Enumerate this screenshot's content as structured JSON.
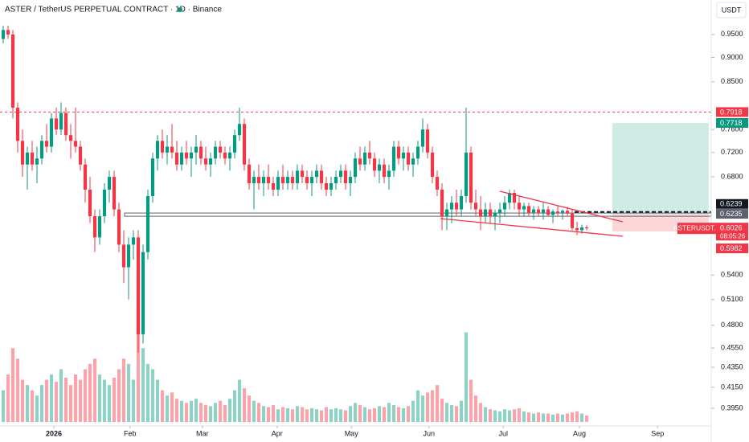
{
  "chart_data": {
    "type": "candlestick",
    "title": "ASTER / TetherUS PERPETUAL CONTRACT · 1D · Binance",
    "currency": "USDT",
    "log_scale": true,
    "grid": false,
    "up_color": "#089981",
    "down_color": "#f23645",
    "ylim": [
      0.379,
      1.03
    ],
    "yticks": [
      {
        "value": 0.95,
        "label": "0.9500"
      },
      {
        "value": 0.9,
        "label": "0.9000"
      },
      {
        "value": 0.85,
        "label": "0.8500"
      },
      {
        "value": 0.76,
        "label": "0.7600"
      },
      {
        "value": 0.72,
        "label": "0.7200"
      },
      {
        "value": 0.68,
        "label": "0.6800"
      },
      {
        "value": 0.54,
        "label": "0.5400"
      },
      {
        "value": 0.51,
        "label": "0.5100"
      },
      {
        "value": 0.48,
        "label": "0.4800"
      },
      {
        "value": 0.455,
        "label": "0.4550"
      },
      {
        "value": 0.435,
        "label": "0.4350"
      },
      {
        "value": 0.415,
        "label": "0.4150"
      },
      {
        "value": 0.395,
        "label": "0.3950"
      }
    ],
    "xlim": [
      -0.667,
      146.83
    ],
    "xticks": [
      {
        "value": 10.5,
        "label": "2026"
      },
      {
        "value": 26.3,
        "label": "Feb"
      },
      {
        "value": 41.3,
        "label": "Mar"
      },
      {
        "value": 56.8,
        "label": "Apr"
      },
      {
        "value": 72.2,
        "label": "May"
      },
      {
        "value": 88.3,
        "label": "Jun"
      },
      {
        "value": 103.7,
        "label": "Jul"
      },
      {
        "value": 119.5,
        "label": "Aug"
      },
      {
        "value": 135.7,
        "label": "Sep"
      }
    ],
    "levels": [
      {
        "value": 0.7918,
        "color": "#f23645"
      },
      {
        "value": 0.7718,
        "color": "#089981"
      },
      {
        "value": 0.6239,
        "color": "#131722"
      },
      {
        "value": 0.6235,
        "color": "#5d606b"
      },
      {
        "value": 0.5982,
        "color": "#f23645"
      }
    ],
    "symbol": "ASTERUSDT.P",
    "last_price": 0.6026,
    "countdown": "08:05:26",
    "candles": [
      [
        0.94,
        0.97,
        0.93,
        0.96
      ],
      [
        0.96,
        0.97,
        0.94,
        0.95
      ],
      [
        0.95,
        0.96,
        0.78,
        0.8
      ],
      [
        0.8,
        0.81,
        0.72,
        0.74
      ],
      [
        0.74,
        0.76,
        0.68,
        0.7
      ],
      [
        0.7,
        0.73,
        0.66,
        0.72
      ],
      [
        0.72,
        0.74,
        0.69,
        0.7
      ],
      [
        0.7,
        0.73,
        0.67,
        0.71
      ],
      [
        0.71,
        0.75,
        0.7,
        0.74
      ],
      [
        0.74,
        0.77,
        0.72,
        0.73
      ],
      [
        0.73,
        0.79,
        0.72,
        0.78
      ],
      [
        0.78,
        0.8,
        0.75,
        0.76
      ],
      [
        0.76,
        0.81,
        0.75,
        0.79
      ],
      [
        0.79,
        0.8,
        0.74,
        0.75
      ],
      [
        0.75,
        0.77,
        0.71,
        0.74
      ],
      [
        0.74,
        0.8,
        0.72,
        0.73
      ],
      [
        0.73,
        0.74,
        0.69,
        0.7
      ],
      [
        0.7,
        0.71,
        0.64,
        0.66
      ],
      [
        0.66,
        0.68,
        0.61,
        0.62
      ],
      [
        0.62,
        0.63,
        0.57,
        0.59
      ],
      [
        0.59,
        0.63,
        0.58,
        0.62
      ],
      [
        0.62,
        0.67,
        0.61,
        0.66
      ],
      [
        0.66,
        0.69,
        0.64,
        0.68
      ],
      [
        0.68,
        0.69,
        0.62,
        0.63
      ],
      [
        0.63,
        0.64,
        0.57,
        0.58
      ],
      [
        0.58,
        0.6,
        0.53,
        0.55
      ],
      [
        0.55,
        0.59,
        0.51,
        0.58
      ],
      [
        0.58,
        0.6,
        0.56,
        0.59
      ],
      [
        0.59,
        0.6,
        0.45,
        0.47
      ],
      [
        0.47,
        0.58,
        0.46,
        0.57
      ],
      [
        0.57,
        0.66,
        0.56,
        0.65
      ],
      [
        0.65,
        0.72,
        0.64,
        0.71
      ],
      [
        0.71,
        0.75,
        0.69,
        0.74
      ],
      [
        0.74,
        0.76,
        0.71,
        0.72
      ],
      [
        0.72,
        0.75,
        0.7,
        0.73
      ],
      [
        0.73,
        0.77,
        0.71,
        0.72
      ],
      [
        0.72,
        0.74,
        0.69,
        0.7
      ],
      [
        0.7,
        0.73,
        0.69,
        0.72
      ],
      [
        0.72,
        0.74,
        0.7,
        0.71
      ],
      [
        0.71,
        0.73,
        0.68,
        0.72
      ],
      [
        0.72,
        0.75,
        0.7,
        0.73
      ],
      [
        0.73,
        0.74,
        0.7,
        0.71
      ],
      [
        0.71,
        0.73,
        0.69,
        0.7
      ],
      [
        0.7,
        0.72,
        0.68,
        0.71
      ],
      [
        0.71,
        0.74,
        0.7,
        0.73
      ],
      [
        0.73,
        0.74,
        0.71,
        0.72
      ],
      [
        0.72,
        0.73,
        0.7,
        0.71
      ],
      [
        0.71,
        0.73,
        0.69,
        0.72
      ],
      [
        0.72,
        0.76,
        0.71,
        0.75
      ],
      [
        0.75,
        0.8,
        0.74,
        0.77
      ],
      [
        0.77,
        0.78,
        0.69,
        0.7
      ],
      [
        0.7,
        0.71,
        0.66,
        0.67
      ],
      [
        0.67,
        0.69,
        0.63,
        0.68
      ],
      [
        0.68,
        0.7,
        0.66,
        0.67
      ],
      [
        0.67,
        0.69,
        0.65,
        0.68
      ],
      [
        0.68,
        0.7,
        0.66,
        0.67
      ],
      [
        0.67,
        0.68,
        0.65,
        0.66
      ],
      [
        0.66,
        0.69,
        0.65,
        0.68
      ],
      [
        0.68,
        0.7,
        0.66,
        0.67
      ],
      [
        0.67,
        0.69,
        0.66,
        0.68
      ],
      [
        0.68,
        0.69,
        0.66,
        0.67
      ],
      [
        0.67,
        0.7,
        0.66,
        0.69
      ],
      [
        0.69,
        0.7,
        0.67,
        0.68
      ],
      [
        0.68,
        0.69,
        0.66,
        0.67
      ],
      [
        0.67,
        0.69,
        0.65,
        0.68
      ],
      [
        0.68,
        0.7,
        0.67,
        0.69
      ],
      [
        0.69,
        0.7,
        0.66,
        0.67
      ],
      [
        0.67,
        0.68,
        0.65,
        0.66
      ],
      [
        0.66,
        0.68,
        0.65,
        0.67
      ],
      [
        0.67,
        0.69,
        0.66,
        0.68
      ],
      [
        0.68,
        0.7,
        0.67,
        0.69
      ],
      [
        0.69,
        0.7,
        0.66,
        0.67
      ],
      [
        0.67,
        0.69,
        0.65,
        0.68
      ],
      [
        0.68,
        0.72,
        0.67,
        0.71
      ],
      [
        0.71,
        0.73,
        0.69,
        0.7
      ],
      [
        0.7,
        0.73,
        0.69,
        0.72
      ],
      [
        0.72,
        0.74,
        0.7,
        0.71
      ],
      [
        0.71,
        0.72,
        0.68,
        0.69
      ],
      [
        0.69,
        0.71,
        0.67,
        0.7
      ],
      [
        0.7,
        0.71,
        0.67,
        0.68
      ],
      [
        0.68,
        0.7,
        0.66,
        0.69
      ],
      [
        0.69,
        0.74,
        0.68,
        0.73
      ],
      [
        0.73,
        0.74,
        0.7,
        0.71
      ],
      [
        0.71,
        0.73,
        0.69,
        0.72
      ],
      [
        0.72,
        0.73,
        0.69,
        0.7
      ],
      [
        0.7,
        0.72,
        0.68,
        0.71
      ],
      [
        0.71,
        0.74,
        0.7,
        0.73
      ],
      [
        0.73,
        0.78,
        0.72,
        0.76
      ],
      [
        0.76,
        0.77,
        0.71,
        0.72
      ],
      [
        0.72,
        0.73,
        0.67,
        0.68
      ],
      [
        0.68,
        0.69,
        0.65,
        0.66
      ],
      [
        0.66,
        0.67,
        0.6,
        0.62
      ],
      [
        0.62,
        0.64,
        0.6,
        0.63
      ],
      [
        0.63,
        0.65,
        0.61,
        0.64
      ],
      [
        0.64,
        0.66,
        0.62,
        0.63
      ],
      [
        0.63,
        0.66,
        0.62,
        0.65
      ],
      [
        0.65,
        0.8,
        0.64,
        0.72
      ],
      [
        0.72,
        0.73,
        0.63,
        0.64
      ],
      [
        0.64,
        0.66,
        0.62,
        0.63
      ],
      [
        0.63,
        0.65,
        0.6,
        0.62
      ],
      [
        0.62,
        0.64,
        0.61,
        0.63
      ],
      [
        0.63,
        0.64,
        0.61,
        0.62
      ],
      [
        0.62,
        0.63,
        0.6,
        0.625
      ],
      [
        0.625,
        0.64,
        0.61,
        0.63
      ],
      [
        0.63,
        0.65,
        0.62,
        0.64
      ],
      [
        0.64,
        0.66,
        0.63,
        0.655
      ],
      [
        0.655,
        0.66,
        0.63,
        0.64
      ],
      [
        0.64,
        0.65,
        0.62,
        0.63
      ],
      [
        0.63,
        0.64,
        0.62,
        0.635
      ],
      [
        0.635,
        0.64,
        0.62,
        0.625
      ],
      [
        0.625,
        0.635,
        0.615,
        0.63
      ],
      [
        0.63,
        0.635,
        0.62,
        0.625
      ],
      [
        0.625,
        0.64,
        0.615,
        0.63
      ],
      [
        0.63,
        0.635,
        0.62,
        0.622
      ],
      [
        0.622,
        0.63,
        0.61,
        0.627
      ],
      [
        0.627,
        0.635,
        0.62,
        0.625
      ],
      [
        0.625,
        0.63,
        0.615,
        0.628
      ],
      [
        0.628,
        0.634,
        0.62,
        0.624
      ],
      [
        0.624,
        0.63,
        0.6,
        0.603
      ],
      [
        0.603,
        0.612,
        0.593,
        0.6
      ],
      [
        0.6,
        0.608,
        0.595,
        0.604
      ],
      [
        0.604,
        0.607,
        0.6,
        0.6026
      ]
    ],
    "volume": [
      30,
      45,
      70,
      60,
      40,
      35,
      30,
      25,
      35,
      40,
      45,
      38,
      50,
      42,
      35,
      45,
      40,
      50,
      55,
      60,
      45,
      40,
      35,
      42,
      50,
      60,
      55,
      40,
      90,
      70,
      55,
      50,
      40,
      30,
      25,
      28,
      22,
      20,
      18,
      20,
      22,
      18,
      16,
      15,
      18,
      20,
      16,
      22,
      30,
      40,
      32,
      25,
      20,
      18,
      15,
      14,
      16,
      12,
      14,
      13,
      12,
      15,
      14,
      12,
      13,
      12,
      11,
      14,
      12,
      13,
      12,
      11,
      15,
      18,
      16,
      14,
      12,
      13,
      15,
      14,
      18,
      16,
      14,
      13,
      15,
      20,
      30,
      25,
      28,
      30,
      35,
      22,
      18,
      16,
      15,
      20,
      85,
      40,
      25,
      18,
      14,
      12,
      11,
      10,
      12,
      11,
      12,
      13,
      10,
      9,
      8,
      9,
      8,
      8,
      7,
      8,
      7,
      8,
      9,
      10,
      8,
      6
    ]
  }
}
